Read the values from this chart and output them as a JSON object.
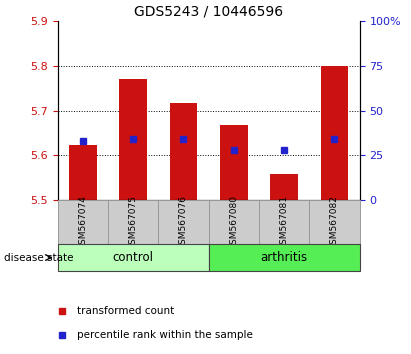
{
  "title": "GDS5243 / 10446596",
  "samples": [
    "GSM567074",
    "GSM567075",
    "GSM567076",
    "GSM567080",
    "GSM567081",
    "GSM567082"
  ],
  "bar_tops": [
    5.622,
    5.77,
    5.718,
    5.668,
    5.558,
    5.8
  ],
  "bar_bottom": 5.5,
  "percentile_values": [
    5.632,
    5.636,
    5.636,
    5.612,
    5.612,
    5.636
  ],
  "ylim_left": [
    5.5,
    5.9
  ],
  "ylim_right": [
    0,
    100
  ],
  "yticks_left": [
    5.5,
    5.6,
    5.7,
    5.8,
    5.9
  ],
  "yticks_right": [
    0,
    25,
    50,
    75,
    100
  ],
  "ytick_labels_right": [
    "0",
    "25",
    "50",
    "75",
    "100%"
  ],
  "bar_color": "#cc1111",
  "blue_color": "#2222cc",
  "groups": [
    {
      "label": "control",
      "indices": [
        0,
        1,
        2
      ],
      "color": "#bbffbb"
    },
    {
      "label": "arthritis",
      "indices": [
        3,
        4,
        5
      ],
      "color": "#55ee55"
    }
  ],
  "legend_red_label": "transformed count",
  "legend_blue_label": "percentile rank within the sample",
  "disease_state_label": "disease state",
  "tick_label_color_left": "#cc1111",
  "tick_label_color_right": "#2222cc",
  "bar_width": 0.55,
  "label_box_color": "#cccccc",
  "label_box_edge": "#999999",
  "grid_ticks": [
    5.6,
    5.7,
    5.8
  ]
}
